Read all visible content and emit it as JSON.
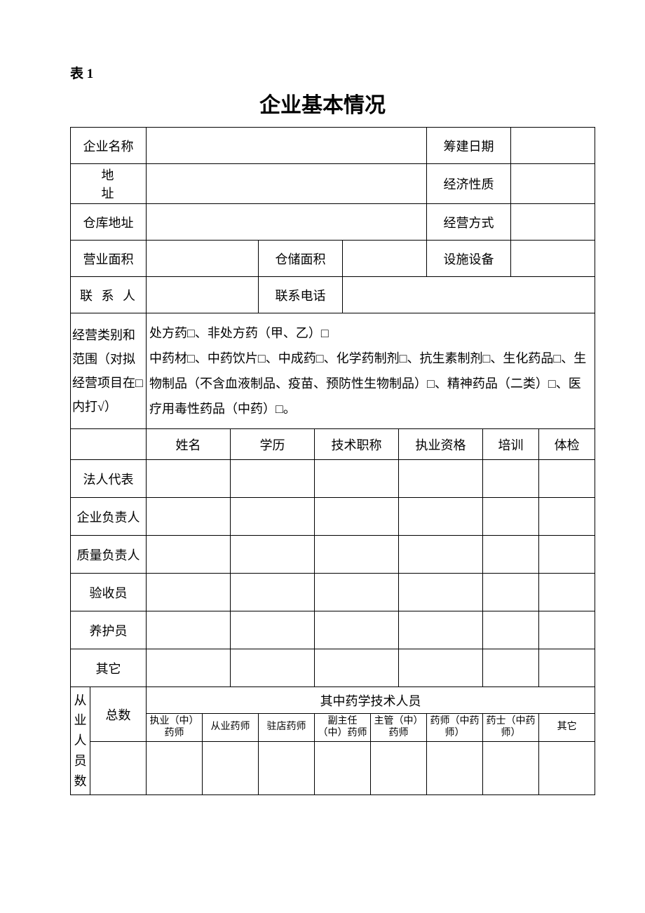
{
  "table_label": "表 1",
  "title": "企业基本情况",
  "labels": {
    "company_name": "企业名称",
    "build_date": "筹建日期",
    "address": "地　址",
    "econ_type": "经济性质",
    "warehouse_addr": "仓库地址",
    "biz_mode": "经营方式",
    "biz_area": "营业面积",
    "storage_area": "仓储面积",
    "facilities": "设施设备",
    "contact": "联 系 人",
    "phone": "联系电话",
    "scope_label": "经营类别和范围（对拟经营项目在□内打√）",
    "scope_content": "处方药□、非处方药（甲、乙）□\n中药材□、中药饮片□、中成药□、化学药制剂□、抗生素制剂□、生化药品□、生物制品（不含血液制品、疫苗、预防性生物制品）□、精神药品（二类）□、医疗用毒性药品（中药）□。",
    "col_name": "姓名",
    "col_edu": "学历",
    "col_title": "技术职称",
    "col_qual": "执业资格",
    "col_train": "培训",
    "col_exam": "体检",
    "legal_rep": "法人代表",
    "company_head": "企业负责人",
    "quality_head": "质量负责人",
    "inspector": "验收员",
    "maintainer": "养护员",
    "other": "其它",
    "staff_count": "从业人员数",
    "total": "总数",
    "tech_staff": "其中药学技术人员",
    "licensed": "执业（中）药师",
    "practicing": "从业药师",
    "resident": "驻店药师",
    "deputy_chief": "副主任（中）药师",
    "supervisor": "主管（中）药师",
    "pharmacist": "药师（中药师）",
    "assistant": "药士（中药师）",
    "other2": "其它"
  },
  "values": {
    "company_name": "",
    "build_date": "",
    "address": "",
    "econ_type": "",
    "warehouse_addr": "",
    "biz_mode": "",
    "biz_area": "",
    "storage_area": "",
    "facilities": "",
    "contact": "",
    "phone": ""
  }
}
